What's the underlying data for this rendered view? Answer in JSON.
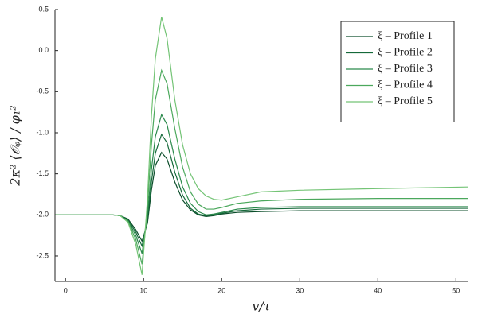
{
  "chart_data": {
    "type": "line",
    "x_label": "v/τ",
    "y_label": "2κ² ⟨𝒪ᵩ⟩ / φ₁²",
    "x": [
      -1.3,
      0,
      2,
      4,
      6,
      7,
      8,
      9,
      9.8,
      10.5,
      11,
      11.5,
      12.3,
      13,
      14,
      15,
      16,
      17,
      18,
      19,
      20,
      22,
      25,
      30,
      40,
      51.5
    ],
    "series": [
      {
        "name": "ξ – Profile 1",
        "color": "#0b4d2a",
        "values": [
          -2,
          -2,
          -2,
          -2,
          -2,
          -2.01,
          -2.05,
          -2.18,
          -2.32,
          -2.1,
          -1.7,
          -1.4,
          -1.24,
          -1.32,
          -1.6,
          -1.82,
          -1.94,
          -2.0,
          -2.02,
          -2.01,
          -1.99,
          -1.97,
          -1.96,
          -1.95,
          -1.95,
          -1.95
        ]
      },
      {
        "name": "ξ – Profile 2",
        "color": "#15693a",
        "values": [
          -2,
          -2,
          -2,
          -2,
          -2,
          -2.01,
          -2.06,
          -2.21,
          -2.38,
          -2.05,
          -1.6,
          -1.25,
          -1.02,
          -1.12,
          -1.48,
          -1.76,
          -1.92,
          -1.99,
          -2.01,
          -2.0,
          -1.98,
          -1.95,
          -1.93,
          -1.92,
          -1.92,
          -1.92
        ]
      },
      {
        "name": "ξ – Profile 3",
        "color": "#2b8a4c",
        "values": [
          -2,
          -2,
          -2,
          -2,
          -2,
          -2.01,
          -2.07,
          -2.25,
          -2.47,
          -2.0,
          -1.45,
          -1.05,
          -0.78,
          -0.9,
          -1.32,
          -1.66,
          -1.86,
          -1.96,
          -2.0,
          -1.99,
          -1.97,
          -1.93,
          -1.91,
          -1.9,
          -1.9,
          -1.9
        ]
      },
      {
        "name": "ξ – Profile 4",
        "color": "#4ba85c",
        "values": [
          -2,
          -2,
          -2,
          -2,
          -2,
          -2.01,
          -2.08,
          -2.3,
          -2.6,
          -1.9,
          -1.15,
          -0.6,
          -0.24,
          -0.4,
          -0.95,
          -1.42,
          -1.72,
          -1.87,
          -1.93,
          -1.93,
          -1.91,
          -1.86,
          -1.83,
          -1.81,
          -1.8,
          -1.8
        ]
      },
      {
        "name": "ξ – Profile 5",
        "color": "#74c476",
        "values": [
          -2,
          -2,
          -2,
          -2,
          -2,
          -2.01,
          -2.09,
          -2.36,
          -2.73,
          -1.8,
          -0.8,
          -0.1,
          0.41,
          0.15,
          -0.6,
          -1.15,
          -1.5,
          -1.68,
          -1.77,
          -1.81,
          -1.82,
          -1.78,
          -1.72,
          -1.7,
          -1.68,
          -1.66
        ]
      }
    ],
    "xlim": [
      -1.35,
      51.5
    ],
    "xticks": [
      0,
      10,
      20,
      30,
      40,
      50
    ],
    "ylim": [
      -2.81,
      0.5
    ],
    "yticks": [
      0.5,
      {
        "value": 0,
        "label": "0.0"
      },
      -0.5,
      {
        "value": -1,
        "label": "-1.0"
      },
      -1.5,
      {
        "value": -2,
        "label": "-2.0"
      },
      -2.5
    ],
    "grid": false,
    "legend": "top-right"
  }
}
